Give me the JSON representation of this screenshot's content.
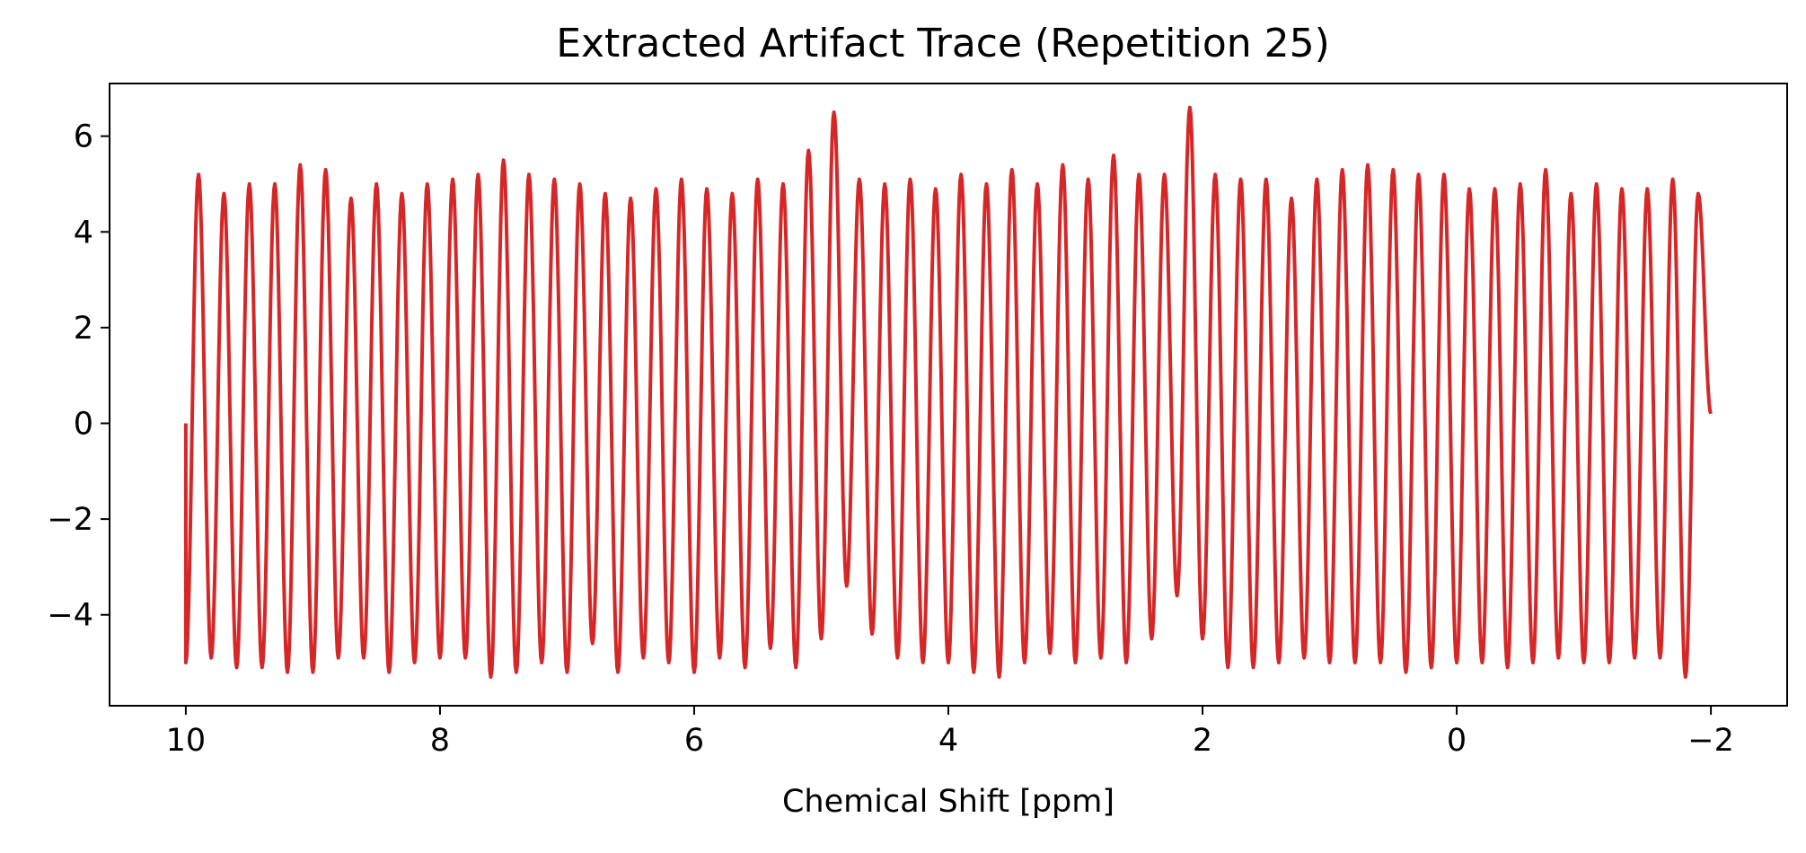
{
  "chart_data": {
    "type": "line",
    "title": "Extracted Artifact Trace (Repetition 25)",
    "xlabel": "Chemical Shift [ppm]",
    "ylabel": "",
    "x_axis_reversed": true,
    "xlim": [
      10.6,
      -2.6
    ],
    "ylim": [
      -5.9,
      7.1
    ],
    "x_ticks": [
      10,
      8,
      6,
      4,
      2,
      0,
      -2
    ],
    "x_tick_labels": [
      "10",
      "8",
      "6",
      "4",
      "2",
      "0",
      "−2"
    ],
    "y_ticks": [
      6,
      4,
      2,
      0,
      -2,
      -4
    ],
    "y_tick_labels": [
      "6",
      "4",
      "2",
      "0",
      "−2",
      "−4"
    ],
    "grid": false,
    "legend": "none",
    "series": [
      {
        "color": "#d62728",
        "x_start": 10.0,
        "x_end": -2.0,
        "start_value": 0.0,
        "end_value": 0.2,
        "oscillation_period_ppm": 0.2,
        "oscillation_amplitude": 5.0,
        "peaks": [
          {
            "x": 9.9,
            "y": 5.2
          },
          {
            "x": 9.7,
            "y": 4.8
          },
          {
            "x": 9.5,
            "y": 5.0
          },
          {
            "x": 9.3,
            "y": 5.0
          },
          {
            "x": 9.1,
            "y": 5.4
          },
          {
            "x": 8.9,
            "y": 5.3
          },
          {
            "x": 8.7,
            "y": 4.7
          },
          {
            "x": 8.5,
            "y": 5.0
          },
          {
            "x": 8.3,
            "y": 4.8
          },
          {
            "x": 8.1,
            "y": 5.0
          },
          {
            "x": 7.9,
            "y": 5.1
          },
          {
            "x": 7.7,
            "y": 5.2
          },
          {
            "x": 7.5,
            "y": 5.5
          },
          {
            "x": 7.3,
            "y": 5.2
          },
          {
            "x": 7.1,
            "y": 5.1
          },
          {
            "x": 6.9,
            "y": 5.0
          },
          {
            "x": 6.7,
            "y": 4.8
          },
          {
            "x": 6.5,
            "y": 4.7
          },
          {
            "x": 6.3,
            "y": 4.9
          },
          {
            "x": 6.1,
            "y": 5.1
          },
          {
            "x": 5.9,
            "y": 4.9
          },
          {
            "x": 5.7,
            "y": 4.8
          },
          {
            "x": 5.5,
            "y": 5.1
          },
          {
            "x": 5.3,
            "y": 5.0
          },
          {
            "x": 5.1,
            "y": 5.7
          },
          {
            "x": 4.9,
            "y": 6.5
          },
          {
            "x": 4.7,
            "y": 5.1
          },
          {
            "x": 4.5,
            "y": 5.0
          },
          {
            "x": 4.3,
            "y": 5.1
          },
          {
            "x": 4.1,
            "y": 4.9
          },
          {
            "x": 3.9,
            "y": 5.2
          },
          {
            "x": 3.7,
            "y": 5.0
          },
          {
            "x": 3.5,
            "y": 5.3
          },
          {
            "x": 3.3,
            "y": 5.0
          },
          {
            "x": 3.1,
            "y": 5.4
          },
          {
            "x": 2.9,
            "y": 5.1
          },
          {
            "x": 2.7,
            "y": 5.6
          },
          {
            "x": 2.5,
            "y": 5.2
          },
          {
            "x": 2.3,
            "y": 5.2
          },
          {
            "x": 2.1,
            "y": 6.6
          },
          {
            "x": 1.9,
            "y": 5.2
          },
          {
            "x": 1.7,
            "y": 5.1
          },
          {
            "x": 1.5,
            "y": 5.1
          },
          {
            "x": 1.3,
            "y": 4.7
          },
          {
            "x": 1.1,
            "y": 5.1
          },
          {
            "x": 0.9,
            "y": 5.3
          },
          {
            "x": 0.7,
            "y": 5.4
          },
          {
            "x": 0.5,
            "y": 5.3
          },
          {
            "x": 0.3,
            "y": 5.2
          },
          {
            "x": 0.1,
            "y": 5.2
          },
          {
            "x": -0.1,
            "y": 4.9
          },
          {
            "x": -0.3,
            "y": 4.9
          },
          {
            "x": -0.5,
            "y": 5.0
          },
          {
            "x": -0.7,
            "y": 5.3
          },
          {
            "x": -0.9,
            "y": 4.8
          },
          {
            "x": -1.1,
            "y": 5.0
          },
          {
            "x": -1.3,
            "y": 4.9
          },
          {
            "x": -1.5,
            "y": 4.9
          },
          {
            "x": -1.7,
            "y": 5.1
          },
          {
            "x": -1.9,
            "y": 4.8
          }
        ],
        "troughs": [
          {
            "x": 10.0,
            "y": -5.0
          },
          {
            "x": 9.8,
            "y": -4.9
          },
          {
            "x": 9.6,
            "y": -5.1
          },
          {
            "x": 9.4,
            "y": -5.1
          },
          {
            "x": 9.2,
            "y": -5.2
          },
          {
            "x": 9.0,
            "y": -5.2
          },
          {
            "x": 8.8,
            "y": -4.9
          },
          {
            "x": 8.6,
            "y": -4.9
          },
          {
            "x": 8.4,
            "y": -5.2
          },
          {
            "x": 8.2,
            "y": -5.0
          },
          {
            "x": 8.0,
            "y": -4.9
          },
          {
            "x": 7.8,
            "y": -4.9
          },
          {
            "x": 7.6,
            "y": -5.3
          },
          {
            "x": 7.4,
            "y": -5.2
          },
          {
            "x": 7.2,
            "y": -5.0
          },
          {
            "x": 7.0,
            "y": -5.2
          },
          {
            "x": 6.8,
            "y": -4.6
          },
          {
            "x": 6.6,
            "y": -5.2
          },
          {
            "x": 6.4,
            "y": -4.9
          },
          {
            "x": 6.2,
            "y": -5.0
          },
          {
            "x": 6.0,
            "y": -5.2
          },
          {
            "x": 5.8,
            "y": -4.9
          },
          {
            "x": 5.6,
            "y": -5.1
          },
          {
            "x": 5.4,
            "y": -4.7
          },
          {
            "x": 5.2,
            "y": -5.1
          },
          {
            "x": 5.0,
            "y": -4.5
          },
          {
            "x": 4.8,
            "y": -3.4
          },
          {
            "x": 4.6,
            "y": -4.4
          },
          {
            "x": 4.4,
            "y": -4.9
          },
          {
            "x": 4.2,
            "y": -5.0
          },
          {
            "x": 4.0,
            "y": -5.0
          },
          {
            "x": 3.8,
            "y": -5.2
          },
          {
            "x": 3.6,
            "y": -5.3
          },
          {
            "x": 3.4,
            "y": -5.0
          },
          {
            "x": 3.2,
            "y": -4.8
          },
          {
            "x": 3.0,
            "y": -5.0
          },
          {
            "x": 2.8,
            "y": -4.9
          },
          {
            "x": 2.6,
            "y": -5.0
          },
          {
            "x": 2.4,
            "y": -4.5
          },
          {
            "x": 2.2,
            "y": -3.6
          },
          {
            "x": 2.0,
            "y": -4.5
          },
          {
            "x": 1.8,
            "y": -5.1
          },
          {
            "x": 1.6,
            "y": -5.1
          },
          {
            "x": 1.4,
            "y": -5.0
          },
          {
            "x": 1.2,
            "y": -4.9
          },
          {
            "x": 1.0,
            "y": -5.0
          },
          {
            "x": 0.8,
            "y": -5.0
          },
          {
            "x": 0.6,
            "y": -5.0
          },
          {
            "x": 0.4,
            "y": -5.2
          },
          {
            "x": 0.2,
            "y": -5.1
          },
          {
            "x": 0.0,
            "y": -5.0
          },
          {
            "x": -0.2,
            "y": -5.0
          },
          {
            "x": -0.4,
            "y": -5.1
          },
          {
            "x": -0.6,
            "y": -5.0
          },
          {
            "x": -0.8,
            "y": -4.9
          },
          {
            "x": -1.0,
            "y": -5.0
          },
          {
            "x": -1.2,
            "y": -5.0
          },
          {
            "x": -1.4,
            "y": -4.9
          },
          {
            "x": -1.6,
            "y": -4.9
          },
          {
            "x": -1.8,
            "y": -5.3
          }
        ]
      }
    ]
  }
}
